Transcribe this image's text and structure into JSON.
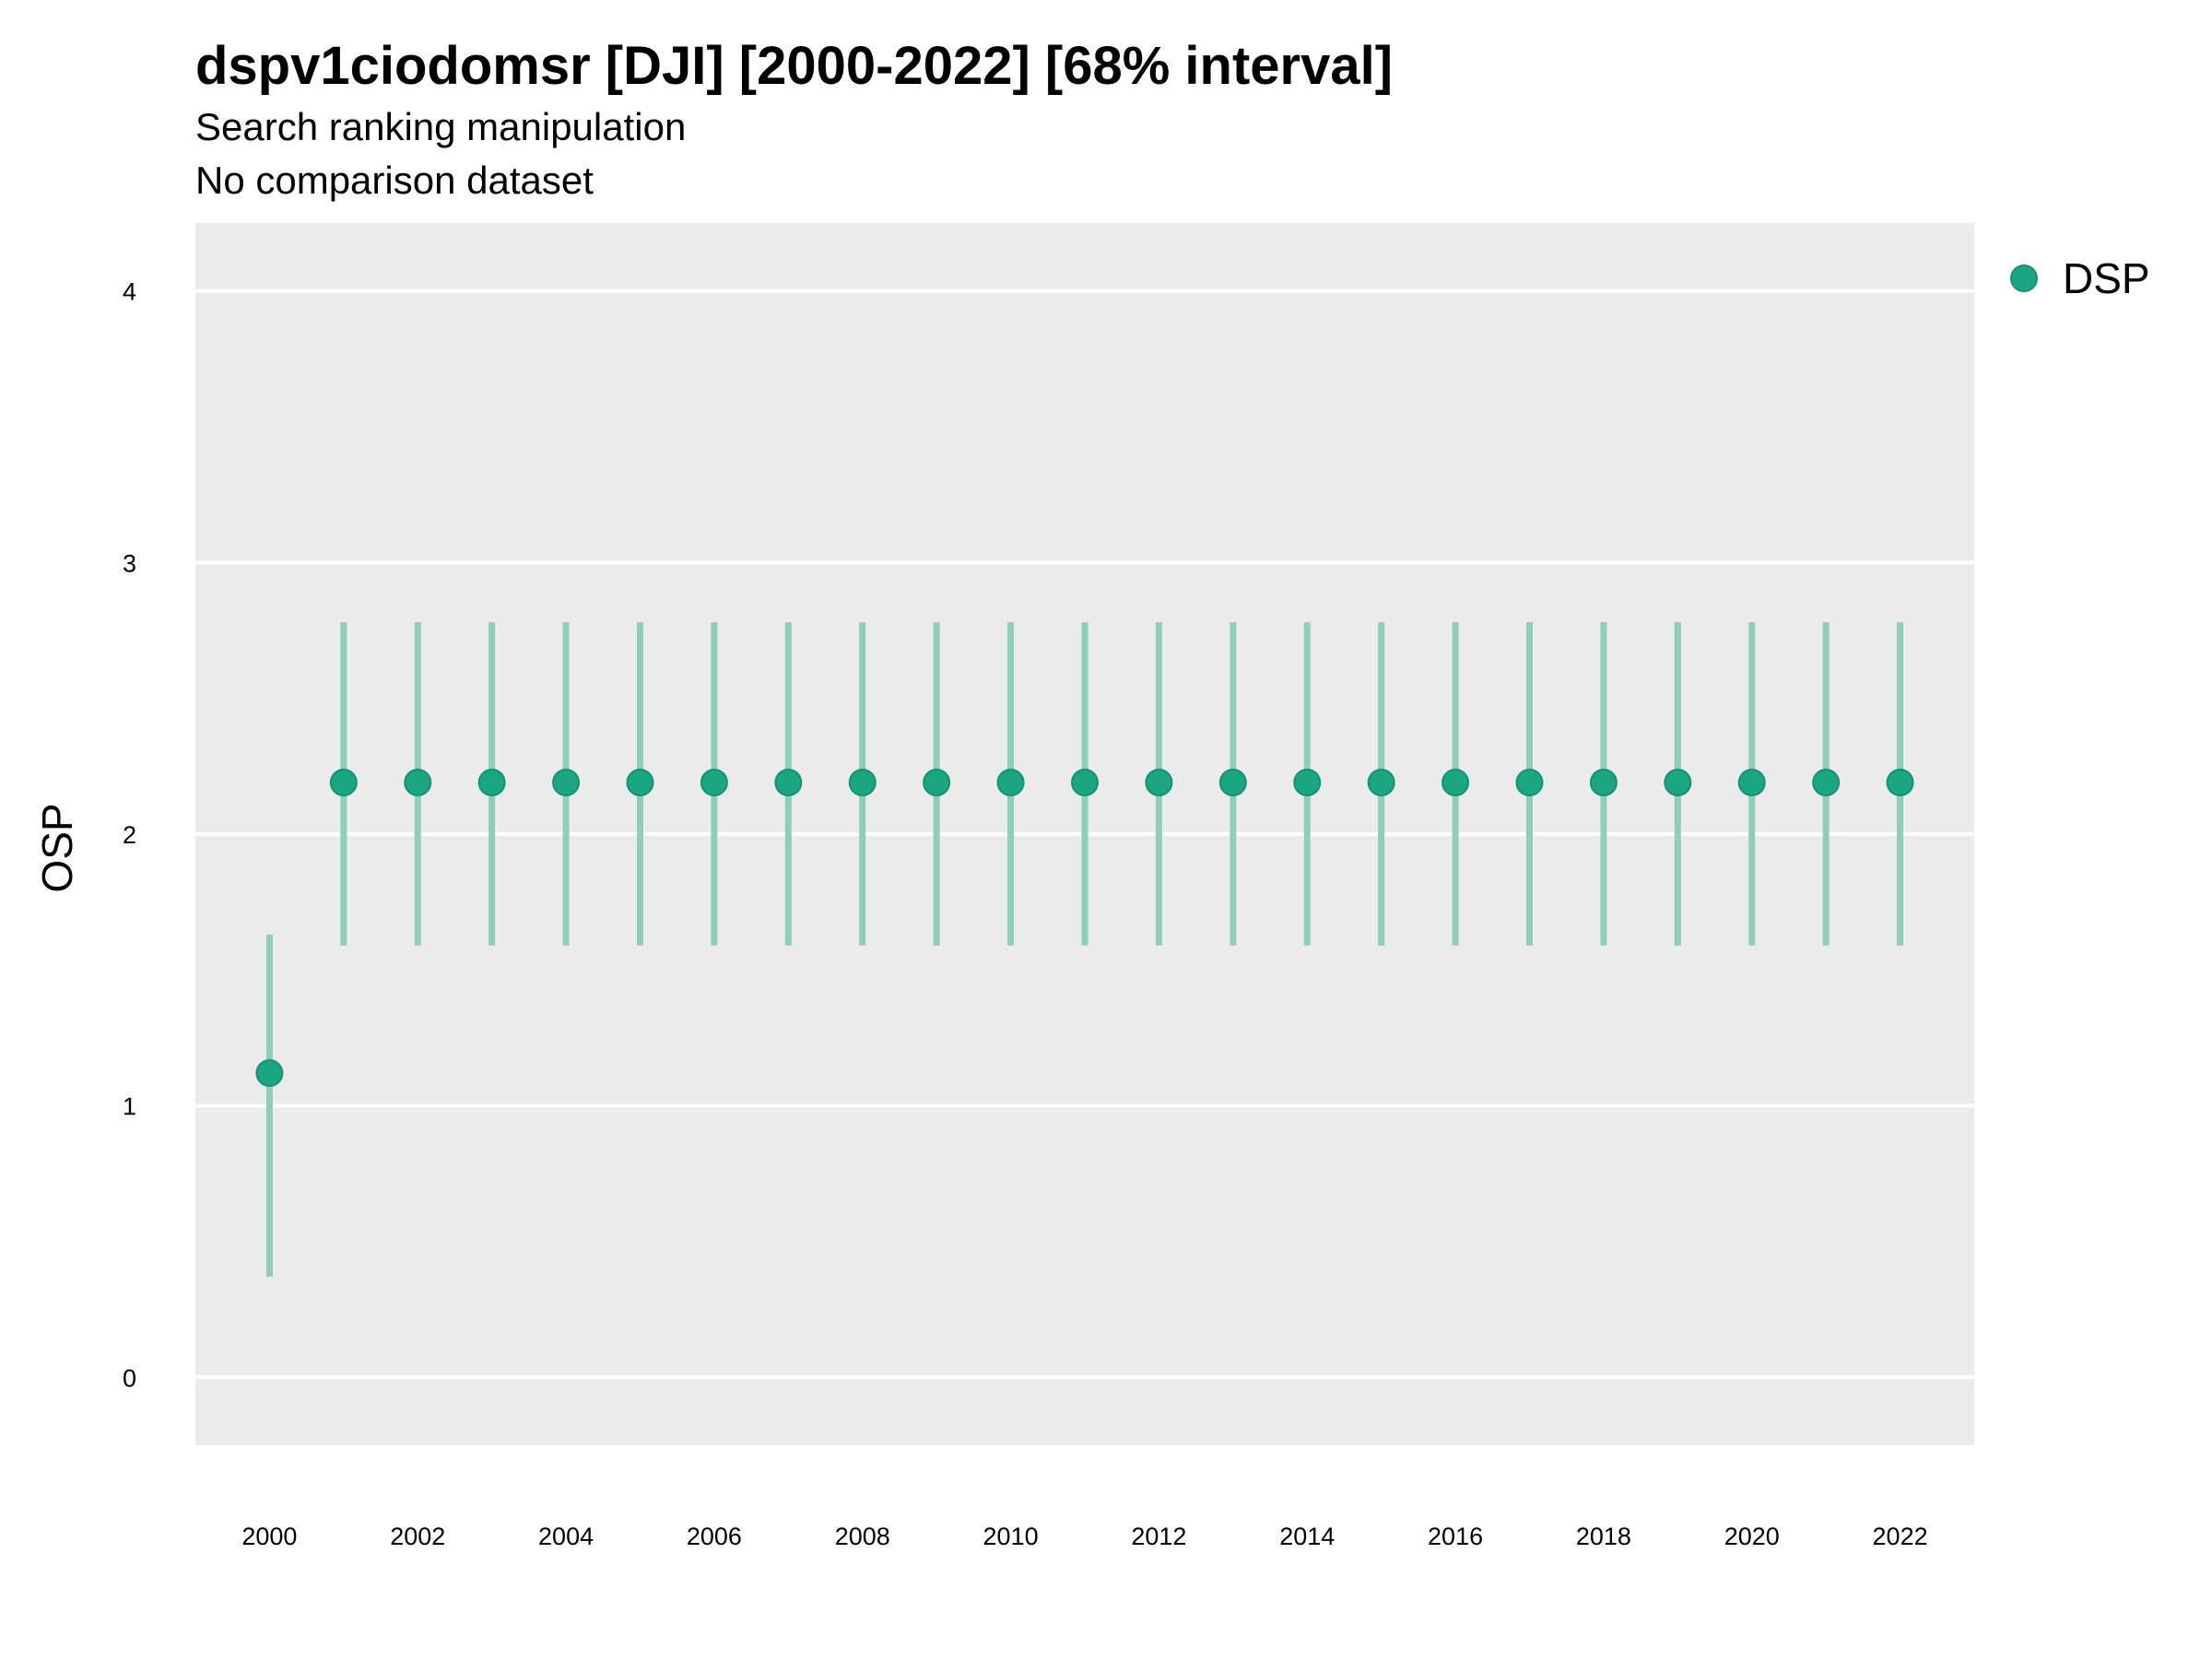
{
  "chart_data": {
    "type": "scatter",
    "title": "dspv1ciodomsr [DJI] [2000-2022] [68% interval]",
    "subtitle": "Search ranking manipulation",
    "caption": "No comparison dataset",
    "xlabel": "",
    "ylabel": "OSP",
    "xlim": [
      1999.0,
      2023.0
    ],
    "ylim": [
      -0.25,
      4.25
    ],
    "x_ticks": [
      2000,
      2002,
      2004,
      2006,
      2008,
      2010,
      2012,
      2014,
      2016,
      2018,
      2020,
      2022
    ],
    "y_ticks": [
      0,
      1,
      2,
      3,
      4
    ],
    "grid": true,
    "legend_position": "top-right",
    "series": [
      {
        "name": "DSP",
        "color": "#1aa683",
        "points": [
          {
            "x": 2000,
            "y": 1.12,
            "lo": 0.37,
            "hi": 1.63
          },
          {
            "x": 2001,
            "y": 2.19,
            "lo": 1.59,
            "hi": 2.78
          },
          {
            "x": 2002,
            "y": 2.19,
            "lo": 1.59,
            "hi": 2.78
          },
          {
            "x": 2003,
            "y": 2.19,
            "lo": 1.59,
            "hi": 2.78
          },
          {
            "x": 2004,
            "y": 2.19,
            "lo": 1.59,
            "hi": 2.78
          },
          {
            "x": 2005,
            "y": 2.19,
            "lo": 1.59,
            "hi": 2.78
          },
          {
            "x": 2006,
            "y": 2.19,
            "lo": 1.59,
            "hi": 2.78
          },
          {
            "x": 2007,
            "y": 2.19,
            "lo": 1.59,
            "hi": 2.78
          },
          {
            "x": 2008,
            "y": 2.19,
            "lo": 1.59,
            "hi": 2.78
          },
          {
            "x": 2009,
            "y": 2.19,
            "lo": 1.59,
            "hi": 2.78
          },
          {
            "x": 2010,
            "y": 2.19,
            "lo": 1.59,
            "hi": 2.78
          },
          {
            "x": 2011,
            "y": 2.19,
            "lo": 1.59,
            "hi": 2.78
          },
          {
            "x": 2012,
            "y": 2.19,
            "lo": 1.59,
            "hi": 2.78
          },
          {
            "x": 2013,
            "y": 2.19,
            "lo": 1.59,
            "hi": 2.78
          },
          {
            "x": 2014,
            "y": 2.19,
            "lo": 1.59,
            "hi": 2.78
          },
          {
            "x": 2015,
            "y": 2.19,
            "lo": 1.59,
            "hi": 2.78
          },
          {
            "x": 2016,
            "y": 2.19,
            "lo": 1.59,
            "hi": 2.78
          },
          {
            "x": 2017,
            "y": 2.19,
            "lo": 1.59,
            "hi": 2.78
          },
          {
            "x": 2018,
            "y": 2.19,
            "lo": 1.59,
            "hi": 2.78
          },
          {
            "x": 2019,
            "y": 2.19,
            "lo": 1.59,
            "hi": 2.78
          },
          {
            "x": 2020,
            "y": 2.19,
            "lo": 1.59,
            "hi": 2.78
          },
          {
            "x": 2021,
            "y": 2.19,
            "lo": 1.59,
            "hi": 2.78
          },
          {
            "x": 2022,
            "y": 2.19,
            "lo": 1.59,
            "hi": 2.78
          }
        ]
      }
    ]
  },
  "colors": {
    "panel_background": "#ebebeb",
    "gridline": "#ffffff",
    "interval": "#8fceb8"
  }
}
